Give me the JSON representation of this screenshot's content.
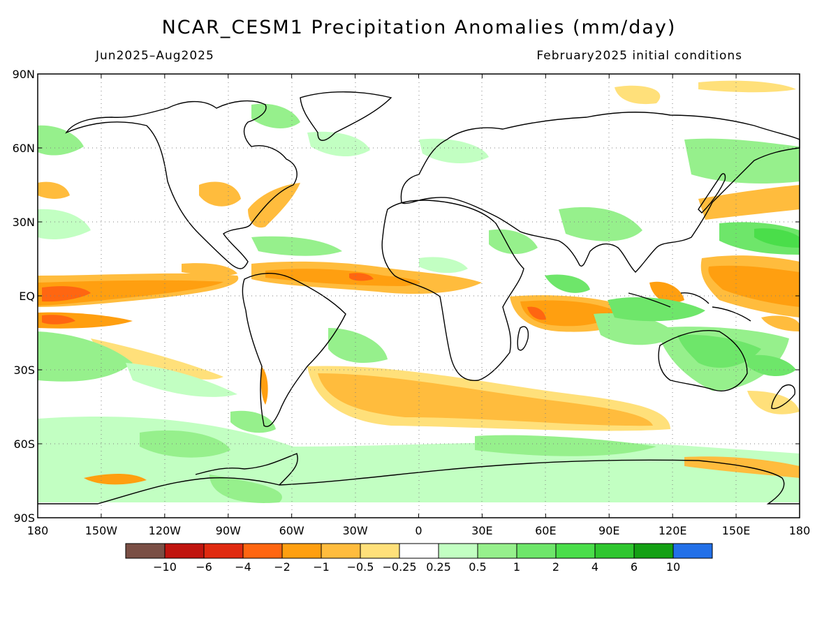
{
  "title": "NCAR_CESM1 Precipitation Anomalies (mm/day)",
  "subtitle_left": "Jun2025–Aug2025",
  "subtitle_right": "February2025 initial conditions",
  "lat_labels": [
    "90N",
    "60N",
    "30N",
    "EQ",
    "30S",
    "60S",
    "90S"
  ],
  "lat_values": [
    90,
    60,
    30,
    0,
    -30,
    -60,
    -90
  ],
  "lon_labels": [
    "180",
    "150W",
    "120W",
    "90W",
    "60W",
    "30W",
    "0",
    "30E",
    "60E",
    "90E",
    "120E",
    "150E",
    "180"
  ],
  "lon_values": [
    -180,
    -150,
    -120,
    -90,
    -60,
    -30,
    0,
    30,
    60,
    90,
    120,
    150,
    180
  ],
  "colorbar": {
    "colors": [
      "#7a4f45",
      "#c0150f",
      "#e02a10",
      "#ff6611",
      "#ff9f10",
      "#ffbc3d",
      "#ffe07a",
      "#ffffff",
      "#c2ffc2",
      "#96f08c",
      "#6ee66a",
      "#4ade4a",
      "#2fc62f",
      "#14a014",
      "#2270e8"
    ],
    "labels": [
      "−10",
      "−6",
      "−4",
      "−2",
      "−1",
      "−0.5",
      "−0.25",
      "0.25",
      "0.5",
      "1",
      "2",
      "4",
      "6",
      "10"
    ]
  },
  "legend": {
    "position": "bottom",
    "series": [
      {
        "name": "−0.5 to −1",
        "color": "#ffbc3d"
      },
      {
        "name": "−1 to −2",
        "color": "#ff9f10"
      },
      {
        "name": "−2 to −4",
        "color": "#ff6611"
      },
      {
        "name": "0.5 to 1",
        "color": "#96f08c"
      },
      {
        "name": "1 to 2",
        "color": "#6ee66a"
      },
      {
        "name": "2 to 4",
        "color": "#4ade4a"
      }
    ]
  }
}
